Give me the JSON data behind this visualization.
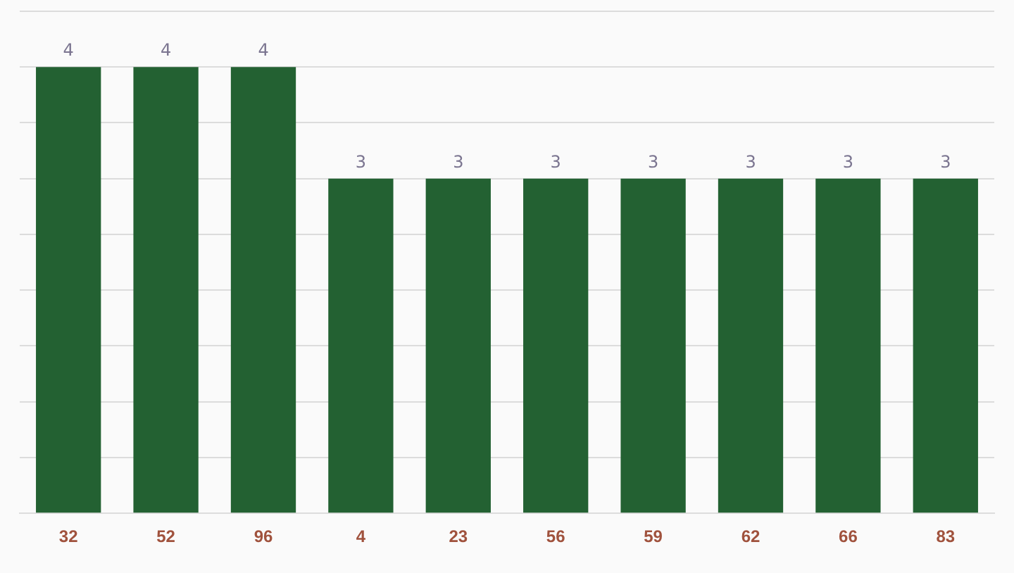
{
  "chart_data": {
    "type": "bar",
    "categories": [
      "32",
      "52",
      "96",
      "4",
      "23",
      "56",
      "59",
      "62",
      "66",
      "83"
    ],
    "values": [
      4,
      4,
      4,
      3,
      3,
      3,
      3,
      3,
      3,
      3
    ],
    "color": "#236132",
    "ylim": [
      0,
      4.5
    ],
    "yticks": [
      0,
      0.5,
      1,
      1.5,
      2,
      2.5,
      3,
      3.5,
      4,
      4.5
    ],
    "grid": "y",
    "tick_labels": "x",
    "data_labels": true,
    "legend": false
  }
}
